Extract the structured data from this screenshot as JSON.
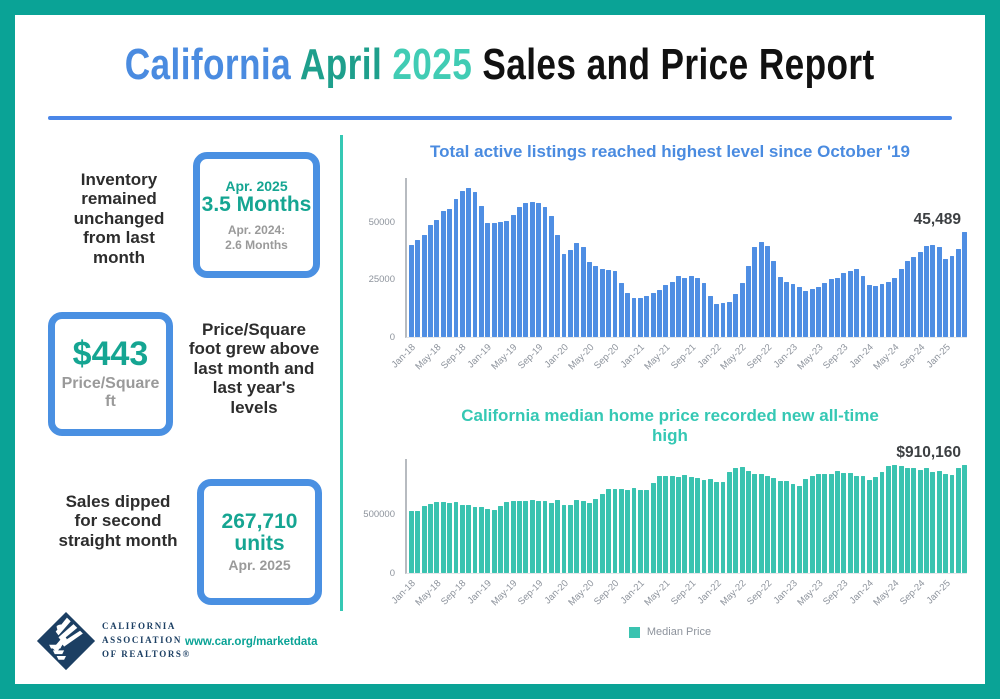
{
  "header": {
    "title_parts": [
      {
        "text": "California ",
        "color": "#4a8be0"
      },
      {
        "text": "April ",
        "color": "#1e9f8c"
      },
      {
        "text": "2025 ",
        "color": "#41ccb4"
      },
      {
        "text": "Sales and Price Report",
        "color": "#111111"
      }
    ]
  },
  "colors": {
    "frame_border": "#0aa396",
    "divider": "#4a86e8",
    "box_border": "#4a90e2",
    "teal_text": "#15a592",
    "listings_bar": "#4f8ee3",
    "price_bar": "#3ac3b0"
  },
  "stats": [
    {
      "text": "Inventory remained unchanged from last month",
      "box_label": "Apr. 2025",
      "box_value": "3.5 Months",
      "box_compare_line1": "Apr. 2024:",
      "box_compare_line2": "2.6 Months"
    },
    {
      "box_value": "$443",
      "box_sub": "Price/Square ft",
      "text": "Price/Square foot grew above last month and last year's levels"
    },
    {
      "text": "Sales dipped for second straight month",
      "box_value_line1": "267,710",
      "box_value_line2": "units",
      "box_sub": "Apr. 2025"
    }
  ],
  "footer": {
    "logo_line1": "CALIFORNIA",
    "logo_line2": "ASSOCIATION",
    "logo_line3": "OF REALTORS®",
    "link": "www.car.org/marketdata"
  },
  "chart_data": [
    {
      "type": "bar",
      "title": "Total active listings reached highest level since October '19",
      "title_color": "#4a8be0",
      "bar_color": "#4f8ee3",
      "grid": false,
      "ylim": [
        0,
        69000
      ],
      "y_ticks": [
        {
          "label": "50000",
          "v": 50000
        },
        {
          "label": "25000",
          "v": 25000
        },
        {
          "label": "0",
          "v": 0
        }
      ],
      "x_start": "Jan-18",
      "x_end": "Apr-25",
      "label_every": 4,
      "x_tick_labels": [
        "Jan-18",
        "May-18",
        "Sep-18",
        "Jan-19",
        "May-19",
        "Sep-19",
        "Jan-20",
        "May-20",
        "Sep-20",
        "Jan-21",
        "May-21",
        "Sep-21",
        "Jan-22",
        "May-22",
        "Sep-22",
        "Jan-23",
        "May-23",
        "Sep-23",
        "Jan-24",
        "May-24",
        "Sep-24",
        "Jan-25"
      ],
      "annotation": "45,489",
      "values": [
        40000,
        42000,
        44500,
        48500,
        51000,
        54500,
        55500,
        60000,
        63500,
        64500,
        63000,
        57000,
        49500,
        49500,
        50000,
        50500,
        53000,
        56500,
        58000,
        58500,
        58000,
        56500,
        52500,
        44500,
        36200,
        37900,
        41000,
        39100,
        32500,
        30700,
        29600,
        29300,
        28600,
        23300,
        19300,
        17100,
        17100,
        17800,
        19300,
        20400,
        22400,
        23900,
        26400,
        25700,
        26700,
        25700,
        23600,
        17800,
        14200,
        14700,
        15200,
        18500,
        23300,
        30700,
        39100,
        41100,
        39500,
        32800,
        26200,
        23900,
        22900,
        21800,
        20000,
        21000,
        21800,
        23600,
        25000,
        25700,
        27600,
        28600,
        29600,
        26700,
        22400,
        22100,
        22900,
        23900,
        25700,
        29600,
        32900,
        34800,
        36800,
        39400,
        40100,
        39100,
        33900,
        35300,
        38000,
        45489
      ]
    },
    {
      "type": "bar",
      "title": "California median home price recorded new all-time high",
      "title_color": "#35c8b4",
      "bar_color": "#3ac3b0",
      "grid": false,
      "ylim": [
        0,
        960000
      ],
      "y_ticks": [
        {
          "label": "500000",
          "v": 500000
        },
        {
          "label": "0",
          "v": 0
        }
      ],
      "x_start": "Jan-18",
      "x_end": "Apr-25",
      "label_every": 4,
      "x_tick_labels": [
        "Jan-18",
        "May-18",
        "Sep-18",
        "Jan-19",
        "May-19",
        "Sep-19",
        "Jan-20",
        "May-20",
        "Sep-20",
        "Jan-21",
        "May-21",
        "Sep-21",
        "Jan-22",
        "May-22",
        "Sep-22",
        "Jan-23",
        "May-23",
        "Sep-23",
        "Jan-24",
        "May-24",
        "Sep-24",
        "Jan-25"
      ],
      "annotation": "$910,160",
      "legend": {
        "label": "Median Price",
        "position": "bottom-center"
      },
      "values": [
        527000,
        522000,
        564000,
        584000,
        600000,
        602000,
        591000,
        596000,
        578000,
        572000,
        554000,
        557000,
        538000,
        534000,
        565000,
        602000,
        611000,
        611000,
        607000,
        617000,
        605000,
        605000,
        589000,
        615000,
        575000,
        578000,
        612000,
        606000,
        588000,
        626000,
        666000,
        706000,
        712000,
        711000,
        699000,
        717000,
        699000,
        699000,
        759000,
        814000,
        819000,
        819000,
        811000,
        827000,
        809000,
        798000,
        782000,
        797000,
        765000,
        771000,
        849000,
        884000,
        898000,
        863000,
        833000,
        839000,
        821000,
        801000,
        777000,
        774000,
        751000,
        735000,
        791000,
        815000,
        836000,
        838000,
        832000,
        859000,
        843000,
        840000,
        822000,
        819000,
        788000,
        806000,
        854000,
        904000,
        908000,
        900000,
        886000,
        888000,
        868000,
        888000,
        852000,
        861000,
        838000,
        829000,
        884000,
        910160
      ]
    }
  ]
}
